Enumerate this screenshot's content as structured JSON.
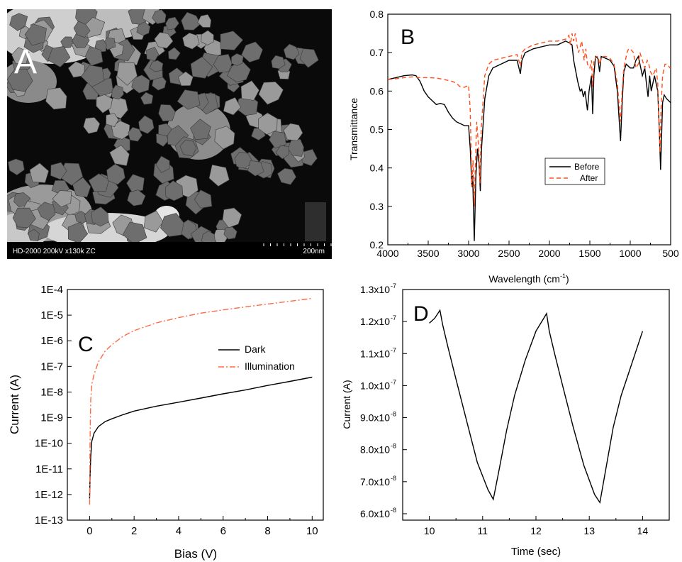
{
  "panel_a": {
    "letter": "A",
    "info_bar": "HD-2000  200kV  x130k  ZC",
    "scale_label": "200nm",
    "colors": {
      "background": "#0a0a0a",
      "particle": "#6e6e6e",
      "bright": "#dcdcdc"
    }
  },
  "chart_data": [
    {
      "panel": "B",
      "type": "line",
      "title": "",
      "xlabel": "Wavelength (cm-1)",
      "xlabel_base": "Wavelength (cm",
      "xlabel_sup": "-1",
      "xlabel_tail": ")",
      "ylabel": "Transmittance",
      "xlim": [
        4000,
        500
      ],
      "ylim": [
        0.2,
        0.8
      ],
      "x_reversed": true,
      "xticks": [
        4000,
        3500,
        3000,
        2500,
        2000,
        1500,
        1000,
        500
      ],
      "xtick_labels": [
        "4000",
        "3500",
        "3000",
        "2500",
        "2000",
        "1500",
        "1000",
        "500"
      ],
      "yticks": [
        0.2,
        0.3,
        0.4,
        0.5,
        0.6,
        0.7,
        0.8
      ],
      "ytick_labels": [
        "0.2",
        "0.3",
        "0.4",
        "0.5",
        "0.6",
        "0.7",
        "0.8"
      ],
      "legend_position": "center-right",
      "series": [
        {
          "name": "Before",
          "color": "#000000",
          "dash": "",
          "points": [
            [
              4000,
              0.63
            ],
            [
              3900,
              0.635
            ],
            [
              3800,
              0.64
            ],
            [
              3700,
              0.642
            ],
            [
              3650,
              0.64
            ],
            [
              3600,
              0.625
            ],
            [
              3550,
              0.6
            ],
            [
              3500,
              0.585
            ],
            [
              3450,
              0.575
            ],
            [
              3400,
              0.565
            ],
            [
              3350,
              0.568
            ],
            [
              3300,
              0.565
            ],
            [
              3250,
              0.545
            ],
            [
              3200,
              0.53
            ],
            [
              3150,
              0.52
            ],
            [
              3100,
              0.515
            ],
            [
              3050,
              0.51
            ],
            [
              3000,
              0.51
            ],
            [
              2980,
              0.45
            ],
            [
              2960,
              0.35
            ],
            [
              2950,
              0.38
            ],
            [
              2930,
              0.21
            ],
            [
              2910,
              0.38
            ],
            [
              2890,
              0.45
            ],
            [
              2870,
              0.41
            ],
            [
              2855,
              0.34
            ],
            [
              2840,
              0.45
            ],
            [
              2800,
              0.58
            ],
            [
              2750,
              0.64
            ],
            [
              2700,
              0.66
            ],
            [
              2600,
              0.67
            ],
            [
              2500,
              0.68
            ],
            [
              2400,
              0.68
            ],
            [
              2360,
              0.645
            ],
            [
              2340,
              0.68
            ],
            [
              2300,
              0.7
            ],
            [
              2200,
              0.71
            ],
            [
              2100,
              0.715
            ],
            [
              2000,
              0.72
            ],
            [
              1900,
              0.72
            ],
            [
              1800,
              0.73
            ],
            [
              1750,
              0.725
            ],
            [
              1720,
              0.72
            ],
            [
              1700,
              0.68
            ],
            [
              1650,
              0.625
            ],
            [
              1620,
              0.6
            ],
            [
              1600,
              0.605
            ],
            [
              1580,
              0.585
            ],
            [
              1560,
              0.6
            ],
            [
              1530,
              0.55
            ],
            [
              1510,
              0.6
            ],
            [
              1480,
              0.64
            ],
            [
              1465,
              0.54
            ],
            [
              1450,
              0.64
            ],
            [
              1430,
              0.69
            ],
            [
              1400,
              0.685
            ],
            [
              1380,
              0.65
            ],
            [
              1360,
              0.69
            ],
            [
              1300,
              0.685
            ],
            [
              1250,
              0.68
            ],
            [
              1200,
              0.665
            ],
            [
              1160,
              0.6
            ],
            [
              1120,
              0.47
            ],
            [
              1100,
              0.57
            ],
            [
              1080,
              0.65
            ],
            [
              1050,
              0.67
            ],
            [
              1000,
              0.66
            ],
            [
              960,
              0.66
            ],
            [
              930,
              0.68
            ],
            [
              900,
              0.69
            ],
            [
              880,
              0.67
            ],
            [
              850,
              0.64
            ],
            [
              820,
              0.66
            ],
            [
              800,
              0.62
            ],
            [
              780,
              0.585
            ],
            [
              760,
              0.64
            ],
            [
              740,
              0.6
            ],
            [
              700,
              0.64
            ],
            [
              660,
              0.6
            ],
            [
              640,
              0.5
            ],
            [
              625,
              0.395
            ],
            [
              610,
              0.5
            ],
            [
              600,
              0.57
            ],
            [
              580,
              0.59
            ],
            [
              550,
              0.58
            ],
            [
              500,
              0.57
            ]
          ]
        },
        {
          "name": "After",
          "color": "#ff4f1f",
          "dash": "6 4",
          "points": [
            [
              4000,
              0.63
            ],
            [
              3900,
              0.632
            ],
            [
              3800,
              0.635
            ],
            [
              3700,
              0.637
            ],
            [
              3600,
              0.635
            ],
            [
              3500,
              0.635
            ],
            [
              3400,
              0.634
            ],
            [
              3300,
              0.63
            ],
            [
              3200,
              0.625
            ],
            [
              3150,
              0.62
            ],
            [
              3100,
              0.61
            ],
            [
              3050,
              0.61
            ],
            [
              3000,
              0.615
            ],
            [
              2980,
              0.55
            ],
            [
              2960,
              0.35
            ],
            [
              2945,
              0.42
            ],
            [
              2930,
              0.3
            ],
            [
              2915,
              0.42
            ],
            [
              2900,
              0.52
            ],
            [
              2875,
              0.45
            ],
            [
              2860,
              0.36
            ],
            [
              2845,
              0.5
            ],
            [
              2800,
              0.64
            ],
            [
              2750,
              0.67
            ],
            [
              2700,
              0.68
            ],
            [
              2600,
              0.685
            ],
            [
              2500,
              0.69
            ],
            [
              2400,
              0.695
            ],
            [
              2360,
              0.665
            ],
            [
              2340,
              0.7
            ],
            [
              2300,
              0.71
            ],
            [
              2200,
              0.72
            ],
            [
              2100,
              0.725
            ],
            [
              2000,
              0.73
            ],
            [
              1900,
              0.73
            ],
            [
              1800,
              0.735
            ],
            [
              1760,
              0.745
            ],
            [
              1740,
              0.72
            ],
            [
              1720,
              0.75
            ],
            [
              1700,
              0.73
            ],
            [
              1680,
              0.75
            ],
            [
              1660,
              0.72
            ],
            [
              1640,
              0.7
            ],
            [
              1600,
              0.73
            ],
            [
              1570,
              0.68
            ],
            [
              1550,
              0.71
            ],
            [
              1530,
              0.67
            ],
            [
              1500,
              0.66
            ],
            [
              1480,
              0.68
            ],
            [
              1465,
              0.61
            ],
            [
              1450,
              0.68
            ],
            [
              1420,
              0.69
            ],
            [
              1400,
              0.69
            ],
            [
              1380,
              0.67
            ],
            [
              1350,
              0.69
            ],
            [
              1300,
              0.69
            ],
            [
              1250,
              0.685
            ],
            [
              1200,
              0.67
            ],
            [
              1160,
              0.62
            ],
            [
              1120,
              0.52
            ],
            [
              1100,
              0.6
            ],
            [
              1080,
              0.66
            ],
            [
              1060,
              0.68
            ],
            [
              1040,
              0.7
            ],
            [
              1020,
              0.71
            ],
            [
              1000,
              0.71
            ],
            [
              960,
              0.7
            ],
            [
              930,
              0.66
            ],
            [
              900,
              0.67
            ],
            [
              880,
              0.7
            ],
            [
              850,
              0.68
            ],
            [
              820,
              0.66
            ],
            [
              790,
              0.68
            ],
            [
              770,
              0.67
            ],
            [
              750,
              0.65
            ],
            [
              720,
              0.64
            ],
            [
              700,
              0.65
            ],
            [
              680,
              0.66
            ],
            [
              660,
              0.62
            ],
            [
              645,
              0.52
            ],
            [
              630,
              0.44
            ],
            [
              620,
              0.55
            ],
            [
              600,
              0.64
            ],
            [
              570,
              0.67
            ],
            [
              540,
              0.67
            ],
            [
              510,
              0.66
            ],
            [
              500,
              0.66
            ]
          ]
        }
      ]
    },
    {
      "panel": "C",
      "type": "line",
      "title": "",
      "xlabel": "Bias (V)",
      "ylabel": "Current (A)",
      "y_scale": "log",
      "xlim": [
        -1,
        10.5
      ],
      "ylim": [
        1e-13,
        0.0001
      ],
      "xticks": [
        0,
        2,
        4,
        6,
        8,
        10
      ],
      "xtick_labels": [
        "0",
        "2",
        "4",
        "6",
        "8",
        "10"
      ],
      "yticks": [
        1e-13,
        1e-12,
        1e-11,
        1e-10,
        1e-09,
        1e-08,
        1e-07,
        1e-06,
        1e-05,
        0.0001
      ],
      "ytick_labels": [
        "1E-13",
        "1E-12",
        "1E-11",
        "1E-10",
        "1E-9",
        "1E-8",
        "1E-7",
        "1E-6",
        "1E-5",
        "1E-4"
      ],
      "legend_position": "right",
      "series": [
        {
          "name": "Dark",
          "color": "#000000",
          "dash": "",
          "points": [
            [
              0,
              7e-13
            ],
            [
              0.02,
              5e-12
            ],
            [
              0.05,
              3e-11
            ],
            [
              0.1,
              1.2e-10
            ],
            [
              0.2,
              2.5e-10
            ],
            [
              0.4,
              4.5e-10
            ],
            [
              0.7,
              7e-10
            ],
            [
              1,
              9e-10
            ],
            [
              1.5,
              1.3e-09
            ],
            [
              2,
              1.8e-09
            ],
            [
              3,
              2.8e-09
            ],
            [
              4,
              4e-09
            ],
            [
              5,
              5.8e-09
            ],
            [
              6,
              8.5e-09
            ],
            [
              7,
              1.2e-08
            ],
            [
              8,
              1.8e-08
            ],
            [
              9,
              2.6e-08
            ],
            [
              10,
              3.8e-08
            ]
          ]
        },
        {
          "name": "Illumination",
          "color": "#ff6a40",
          "dash": "8 3 2 3",
          "points": [
            [
              0,
              4e-13
            ],
            [
              0.02,
              1e-10
            ],
            [
              0.05,
              5e-09
            ],
            [
              0.1,
              2e-08
            ],
            [
              0.2,
              5e-08
            ],
            [
              0.4,
              1.5e-07
            ],
            [
              0.7,
              4e-07
            ],
            [
              1,
              7e-07
            ],
            [
              1.5,
              1.5e-06
            ],
            [
              2,
              2.5e-06
            ],
            [
              3,
              5e-06
            ],
            [
              4,
              8e-06
            ],
            [
              5,
              1.2e-05
            ],
            [
              6,
              1.6e-05
            ],
            [
              7,
              2.1e-05
            ],
            [
              8,
              2.7e-05
            ],
            [
              9,
              3.5e-05
            ],
            [
              10,
              4.5e-05
            ]
          ]
        }
      ]
    },
    {
      "panel": "D",
      "type": "line",
      "title": "",
      "xlabel": "Time (sec)",
      "ylabel": "Current (A)",
      "xlim": [
        9.5,
        14.5
      ],
      "ylim": [
        5.8e-08,
        1.3e-07
      ],
      "xticks": [
        10,
        11,
        12,
        13,
        14
      ],
      "xtick_labels": [
        "10",
        "11",
        "12",
        "13",
        "14"
      ],
      "yticks": [
        6e-08,
        7e-08,
        8e-08,
        9e-08,
        1e-07,
        1.1e-07,
        1.2e-07,
        1.3e-07
      ],
      "ytick_mantissa": [
        "6.0x10",
        "7.0x10",
        "8.0x10",
        "9.0x10",
        "1.0x10",
        "1.1x10",
        "1.2x10",
        "1.3x10"
      ],
      "ytick_exponent": [
        "-8",
        "-8",
        "-8",
        "-8",
        "-7",
        "-7",
        "-7",
        "-7"
      ],
      "series": [
        {
          "name": "",
          "color": "#000000",
          "dash": "",
          "points": [
            [
              10,
              1.195e-07
            ],
            [
              10.1,
              1.21e-07
            ],
            [
              10.2,
              1.235e-07
            ],
            [
              10.25,
              1.19e-07
            ],
            [
              10.35,
              1.12e-07
            ],
            [
              10.5,
              1.02e-07
            ],
            [
              10.7,
              8.9e-08
            ],
            [
              10.9,
              7.6e-08
            ],
            [
              11.1,
              6.75e-08
            ],
            [
              11.2,
              6.45e-08
            ],
            [
              11.3,
              7.3e-08
            ],
            [
              11.45,
              8.6e-08
            ],
            [
              11.6,
              9.7e-08
            ],
            [
              11.8,
              1.08e-07
            ],
            [
              12.0,
              1.17e-07
            ],
            [
              12.2,
              1.225e-07
            ],
            [
              12.25,
              1.17e-07
            ],
            [
              12.35,
              1.1e-07
            ],
            [
              12.5,
              1e-07
            ],
            [
              12.7,
              8.7e-08
            ],
            [
              12.9,
              7.5e-08
            ],
            [
              13.1,
              6.6e-08
            ],
            [
              13.2,
              6.35e-08
            ],
            [
              13.3,
              7.3e-08
            ],
            [
              13.45,
              8.7e-08
            ],
            [
              13.6,
              9.7e-08
            ],
            [
              13.8,
              1.07e-07
            ],
            [
              14.0,
              1.17e-07
            ]
          ]
        }
      ]
    }
  ]
}
